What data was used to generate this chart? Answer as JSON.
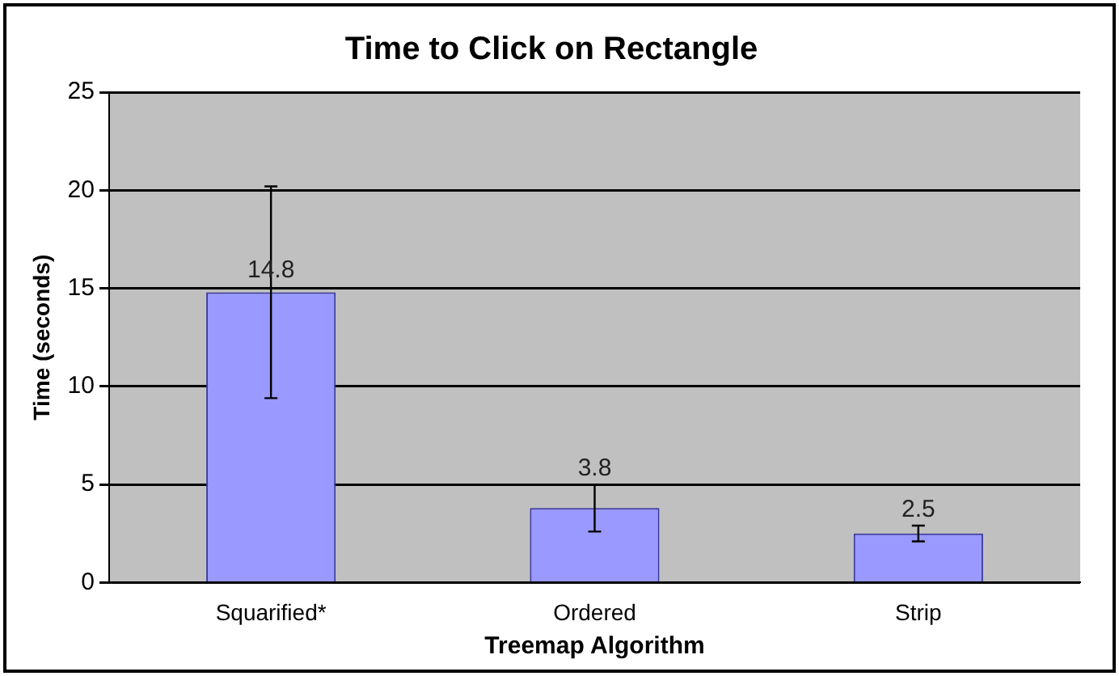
{
  "chart_data": {
    "type": "bar",
    "title": "Time to Click on Rectangle",
    "xlabel": "Treemap Algorithm",
    "ylabel": "Time (seconds)",
    "categories": [
      "Squarified*",
      "Ordered",
      "Strip"
    ],
    "values": [
      14.8,
      3.8,
      2.5
    ],
    "errors": [
      5.4,
      1.2,
      0.4
    ],
    "color": "#9999ff",
    "ylim": [
      0,
      25
    ],
    "yticks": [
      0,
      5,
      10,
      15,
      20,
      25
    ],
    "grid": "y",
    "data_labels": true,
    "legend": false
  }
}
